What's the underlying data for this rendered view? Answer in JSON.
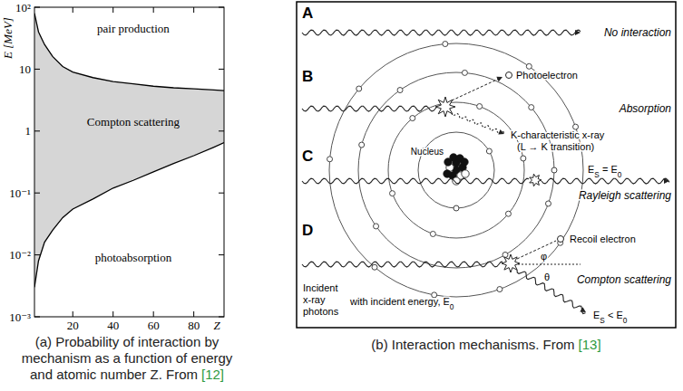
{
  "chart_data": {
    "type": "line",
    "y_label": "E [MeV]",
    "x_label": "Z",
    "log": "y",
    "grid": false,
    "x": [
      1,
      3,
      6,
      10,
      15,
      20,
      30,
      40,
      50,
      60,
      70,
      80,
      90,
      95
    ],
    "series": [
      {
        "color": "#000000",
        "values": [
          80,
          40,
          25,
          16,
          11,
          9,
          7.3,
          6.3,
          5.8,
          5.3,
          5.0,
          4.8,
          4.6,
          4.5
        ]
      },
      {
        "color": "#000000",
        "values": [
          0.003,
          0.008,
          0.016,
          0.025,
          0.04,
          0.055,
          0.08,
          0.12,
          0.16,
          0.22,
          0.3,
          0.4,
          0.55,
          0.65
        ]
      }
    ],
    "xlim": [
      1,
      95
    ],
    "xticks": [
      20,
      40,
      60,
      80
    ],
    "ylim": [
      0.001,
      100
    ],
    "yticks": [
      {
        "value": 0.001,
        "label": "10⁻³"
      },
      {
        "value": 0.01,
        "label": "10⁻²"
      },
      {
        "value": 0.1,
        "label": "10⁻¹"
      },
      1,
      10,
      {
        "value": 100,
        "label": "10²"
      }
    ],
    "annotations": [
      {
        "text": "pair production",
        "x": 50,
        "y": 45
      },
      {
        "text": "Compton scattering",
        "x": 50,
        "y": 1.4
      },
      {
        "text": "photoabsorption",
        "x": 50,
        "y": 0.009
      }
    ]
  },
  "caption_a": {
    "lines": [
      "(a) Probability of interaction by",
      "mechanism as a function of energy",
      "and atomic number Z. From"
    ],
    "ref": "[12]"
  },
  "diagram": {
    "rows": [
      {
        "letter": "A",
        "label": "No interaction"
      },
      {
        "letter": "B",
        "label": "Absorption"
      },
      {
        "letter": "C",
        "label": "Rayleigh scattering"
      },
      {
        "letter": "D",
        "label": "Compton scattering"
      }
    ],
    "photoelectron": "Photoelectron",
    "k_xray": [
      "K-characteristic x-ray",
      "(L → K transition)"
    ],
    "nucleus": "Nucleus",
    "rayleigh_energy": [
      {
        "t": "E"
      },
      {
        "t": "S",
        "sub": true
      },
      {
        "t": " = E"
      },
      {
        "t": "0",
        "sub": true
      }
    ],
    "recoil": "Recoil electron",
    "phi": "φ",
    "theta": "θ",
    "compton_energy": [
      {
        "t": "E"
      },
      {
        "t": "S",
        "sub": true
      },
      {
        "t": " < E"
      },
      {
        "t": "0",
        "sub": true
      }
    ],
    "incident": [
      "Incident",
      "x-ray",
      "photons"
    ],
    "incident_energy": [
      {
        "t": "with incident energy, E"
      },
      {
        "t": "0",
        "sub": true
      }
    ]
  },
  "caption_b": {
    "text": "(b) Interaction mechanisms. From",
    "ref": "[13]"
  }
}
